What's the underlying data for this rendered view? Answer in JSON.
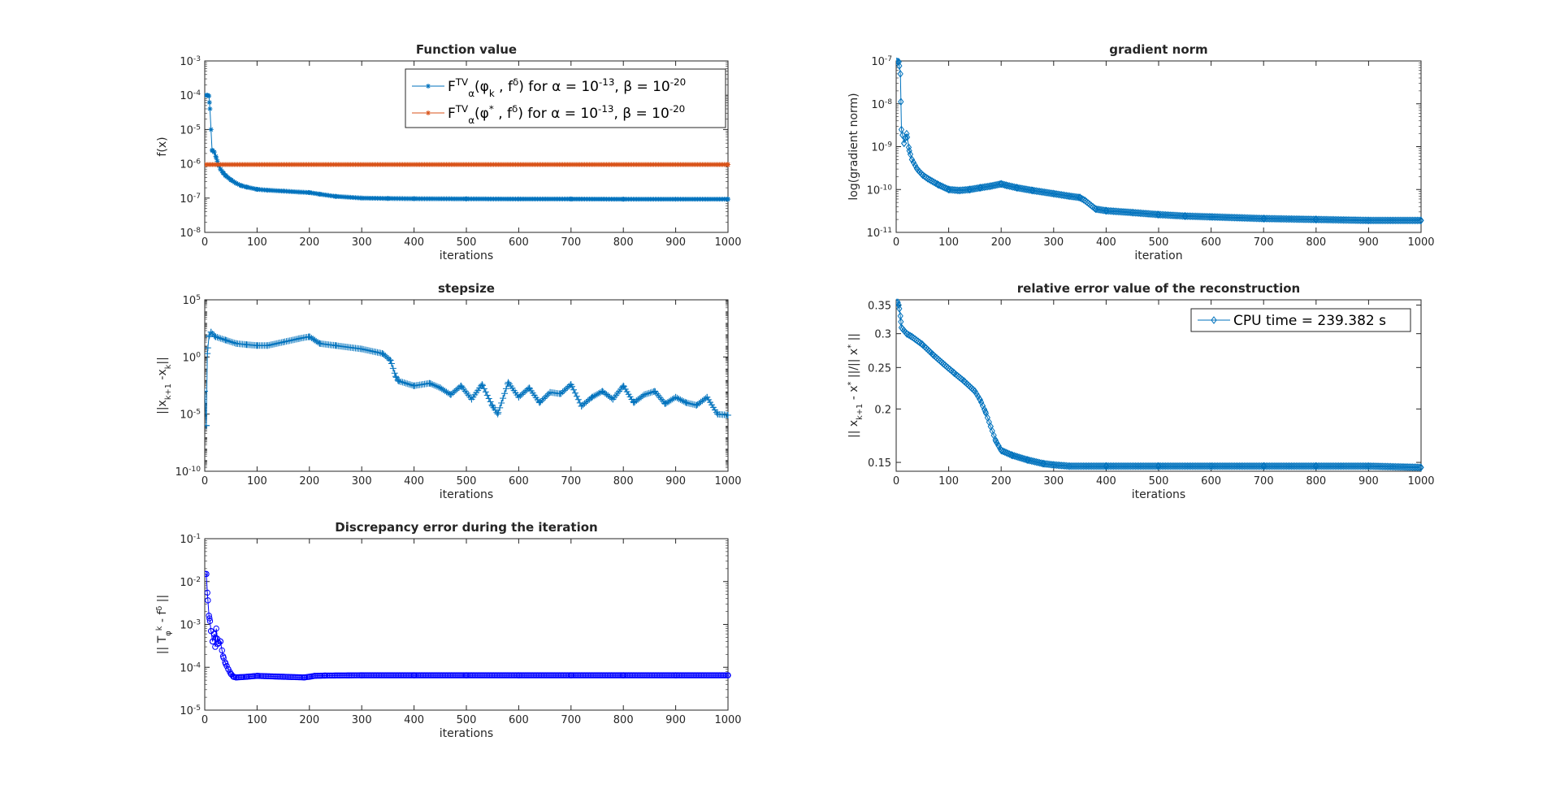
{
  "chart_data": [
    {
      "id": "function-value",
      "type": "line",
      "title": "Function value",
      "xlabel": "iterations",
      "ylabel": "f(x)",
      "xlim": [
        0,
        1000
      ],
      "yscale": "log",
      "ylim_exp": [
        -8,
        -3
      ],
      "xticks": [
        "0",
        "100",
        "200",
        "300",
        "400",
        "500",
        "600",
        "700",
        "800",
        "900",
        "1000"
      ],
      "yticks": [
        {
          "base": "10",
          "exp": "-8"
        },
        {
          "base": "10",
          "exp": "-7"
        },
        {
          "base": "10",
          "exp": "-6"
        },
        {
          "base": "10",
          "exp": "-5"
        },
        {
          "base": "10",
          "exp": "-4"
        },
        {
          "base": "10",
          "exp": "-3"
        }
      ],
      "legend": {
        "position": "top-right",
        "entries": [
          "F^TV_α(φ_k , f^δ) for α = 10^-13, β = 10^-20",
          "F^TV_α(φ^* , f^δ) for α = 10^-13, β = 10^-20"
        ]
      },
      "series": [
        {
          "name": "F^TV_α(φ_k , f^δ) for α = 10^-13, β = 10^-20",
          "color": "#0072BD",
          "marker": "*",
          "x": [
            0,
            5,
            8,
            10,
            14,
            18,
            22,
            26,
            30,
            35,
            40,
            50,
            60,
            70,
            80,
            100,
            120,
            150,
            180,
            200,
            220,
            250,
            300,
            350,
            400,
            500,
            600,
            700,
            800,
            900,
            1000
          ],
          "y": [
            0.0001,
            0.0001,
            9.5e-05,
            4e-05,
            2.5e-06,
            2.2e-06,
            1.5e-06,
            9.5e-07,
            7e-07,
            5.5e-07,
            4.5e-07,
            3.4e-07,
            2.7e-07,
            2.3e-07,
            2.1e-07,
            1.8e-07,
            1.7e-07,
            1.6e-07,
            1.5e-07,
            1.45e-07,
            1.3e-07,
            1.12e-07,
            1e-07,
            9.75e-08,
            9.6e-08,
            9.5e-08,
            9.4e-08,
            9.4e-08,
            9.3e-08,
            9.3e-08,
            9.3e-08
          ]
        },
        {
          "name": "F^TV_α(φ^* , f^δ) for α = 10^-13, β = 10^-20",
          "color": "#D95319",
          "marker": "*",
          "x": [
            0,
            1000
          ],
          "y": [
            9.5e-07,
            9.5e-07
          ]
        }
      ]
    },
    {
      "id": "gradient-norm",
      "type": "line",
      "title": "gradient norm",
      "xlabel": "iteration",
      "ylabel": "log(gradient norm)",
      "xlim": [
        0,
        1000
      ],
      "yscale": "log",
      "ylim_exp": [
        -11,
        -7
      ],
      "xticks": [
        "0",
        "100",
        "200",
        "300",
        "400",
        "500",
        "600",
        "700",
        "800",
        "900",
        "1000"
      ],
      "yticks": [
        {
          "base": "10",
          "exp": "-11"
        },
        {
          "base": "10",
          "exp": "-10"
        },
        {
          "base": "10",
          "exp": "-9"
        },
        {
          "base": "10",
          "exp": "-8"
        },
        {
          "base": "10",
          "exp": "-7"
        }
      ],
      "series": [
        {
          "name": "gradient norm",
          "color": "#0072BD",
          "marker": "diamond",
          "x": [
            0,
            5,
            8,
            10,
            15,
            20,
            25,
            30,
            40,
            50,
            60,
            80,
            100,
            120,
            140,
            160,
            180,
            200,
            210,
            230,
            260,
            300,
            330,
            350,
            360,
            380,
            400,
            450,
            500,
            550,
            600,
            700,
            800,
            900,
            1000
          ],
          "y": [
            1e-07,
            9.5e-08,
            5e-08,
            2.5e-09,
            1.2e-09,
            2e-09,
            8e-10,
            5e-10,
            3e-10,
            2.2e-10,
            1.8e-10,
            1.3e-10,
            1e-10,
            9.5e-11,
            1e-10,
            1.1e-10,
            1.2e-10,
            1.35e-10,
            1.25e-10,
            1.1e-10,
            9.5e-11,
            8e-11,
            7e-11,
            6.5e-11,
            5.5e-11,
            3.5e-11,
            3.2e-11,
            2.9e-11,
            2.6e-11,
            2.4e-11,
            2.3e-11,
            2.1e-11,
            2e-11,
            1.9e-11,
            1.9e-11
          ]
        }
      ]
    },
    {
      "id": "stepsize",
      "type": "line",
      "title": "stepsize",
      "xlabel": "iterations",
      "ylabel": "||x_k+1 -x_k||",
      "xlim": [
        0,
        1000
      ],
      "yscale": "log",
      "ylim_exp": [
        -10,
        5
      ],
      "xticks": [
        "0",
        "100",
        "200",
        "300",
        "400",
        "500",
        "600",
        "700",
        "800",
        "900",
        "1000"
      ],
      "yticks": [
        {
          "base": "10",
          "exp": "-10"
        },
        {
          "base": "10",
          "exp": "-5"
        },
        {
          "base": "10",
          "exp": "0"
        },
        {
          "base": "10",
          "exp": "5"
        }
      ],
      "series": [
        {
          "name": "stepsize",
          "color": "#0072BD",
          "marker": "+",
          "x": [
            0,
            3,
            5,
            8,
            12,
            20,
            40,
            60,
            80,
            100,
            120,
            150,
            180,
            200,
            210,
            220,
            250,
            300,
            340,
            355,
            365,
            370,
            400,
            430,
            450,
            470,
            490,
            510,
            530,
            550,
            560,
            580,
            600,
            620,
            640,
            660,
            680,
            700,
            720,
            740,
            760,
            780,
            800,
            820,
            840,
            860,
            880,
            900,
            920,
            940,
            960,
            980,
            1000
          ],
          "y": [
            0.001,
            1e-06,
            2,
            60,
            150,
            60,
            30,
            15,
            12,
            10,
            10,
            20,
            40,
            60,
            30,
            15,
            10,
            5,
            2,
            0.5,
            0.02,
            0.008,
            0.003,
            0.005,
            0.002,
            0.0005,
            0.003,
            0.0002,
            0.004,
            5e-05,
            1e-05,
            0.006,
            0.0003,
            0.002,
            0.0001,
            0.0008,
            0.0006,
            0.004,
            5e-05,
            0.0003,
            0.001,
            0.0002,
            0.003,
            0.0001,
            0.0005,
            0.001,
            8e-05,
            0.0003,
            0.0001,
            6e-05,
            0.0003,
            1e-05,
            8e-06
          ]
        }
      ]
    },
    {
      "id": "relative-error",
      "type": "line",
      "title": "relative error value of the reconstruction",
      "xlabel": "iterations",
      "ylabel": "|| x_k+1 - x^* ||/|| x^* ||",
      "xlim": [
        0,
        1000
      ],
      "yscale": "log",
      "ylim": [
        0.143,
        0.36
      ],
      "xticks": [
        "0",
        "100",
        "200",
        "300",
        "400",
        "500",
        "600",
        "700",
        "800",
        "900",
        "1000"
      ],
      "yticks": [
        "0.15",
        "0.2",
        "0.25",
        "0.3",
        "0.35"
      ],
      "legend": {
        "position": "top-right",
        "entries": [
          "CPU time = 239.382 s"
        ]
      },
      "series": [
        {
          "name": "CPU time = 239.382 s",
          "color": "#0072BD",
          "marker": "diamond",
          "x": [
            0,
            3,
            5,
            8,
            10,
            15,
            20,
            30,
            50,
            70,
            90,
            110,
            130,
            150,
            160,
            170,
            180,
            190,
            195,
            200,
            220,
            250,
            280,
            300,
            330,
            400,
            500,
            600,
            700,
            800,
            900,
            1000
          ],
          "y": [
            0.355,
            0.355,
            0.35,
            0.33,
            0.31,
            0.305,
            0.3,
            0.295,
            0.283,
            0.268,
            0.255,
            0.243,
            0.232,
            0.22,
            0.21,
            0.197,
            0.182,
            0.168,
            0.164,
            0.16,
            0.156,
            0.152,
            0.149,
            0.148,
            0.147,
            0.147,
            0.147,
            0.147,
            0.147,
            0.147,
            0.147,
            0.146
          ]
        }
      ]
    },
    {
      "id": "discrepancy-error",
      "type": "line",
      "title": "Discrepancy error during the iteration",
      "xlabel": "iterations",
      "ylabel": "|| T_φ^k - f^δ ||",
      "xlim": [
        0,
        1000
      ],
      "yscale": "log",
      "ylim_exp": [
        -5,
        -1
      ],
      "xticks": [
        "0",
        "100",
        "200",
        "300",
        "400",
        "500",
        "600",
        "700",
        "800",
        "900",
        "1000"
      ],
      "yticks": [
        {
          "base": "10",
          "exp": "-5"
        },
        {
          "base": "10",
          "exp": "-4"
        },
        {
          "base": "10",
          "exp": "-3"
        },
        {
          "base": "10",
          "exp": "-2"
        },
        {
          "base": "10",
          "exp": "-1"
        }
      ],
      "series": [
        {
          "name": "discrepancy",
          "color": "#0000FF",
          "marker": "circle",
          "x": [
            0,
            3,
            5,
            8,
            10,
            12,
            15,
            18,
            20,
            22,
            25,
            30,
            35,
            40,
            45,
            50,
            55,
            60,
            80,
            100,
            150,
            190,
            200,
            210,
            230,
            300,
            400,
            500,
            600,
            700,
            800,
            900,
            1000
          ],
          "y": [
            0.015,
            0.015,
            0.0055,
            0.0016,
            0.0012,
            0.0007,
            0.0004,
            0.0006,
            0.0003,
            0.0008,
            0.00035,
            0.0004,
            0.00018,
            0.00012,
            9e-05,
            7e-05,
            6e-05,
            5.8e-05,
            6e-05,
            6.3e-05,
            6e-05,
            5.8e-05,
            6e-05,
            6.3e-05,
            6.4e-05,
            6.5e-05,
            6.5e-05,
            6.5e-05,
            6.5e-05,
            6.5e-05,
            6.5e-05,
            6.5e-05,
            6.5e-05
          ]
        }
      ]
    }
  ]
}
